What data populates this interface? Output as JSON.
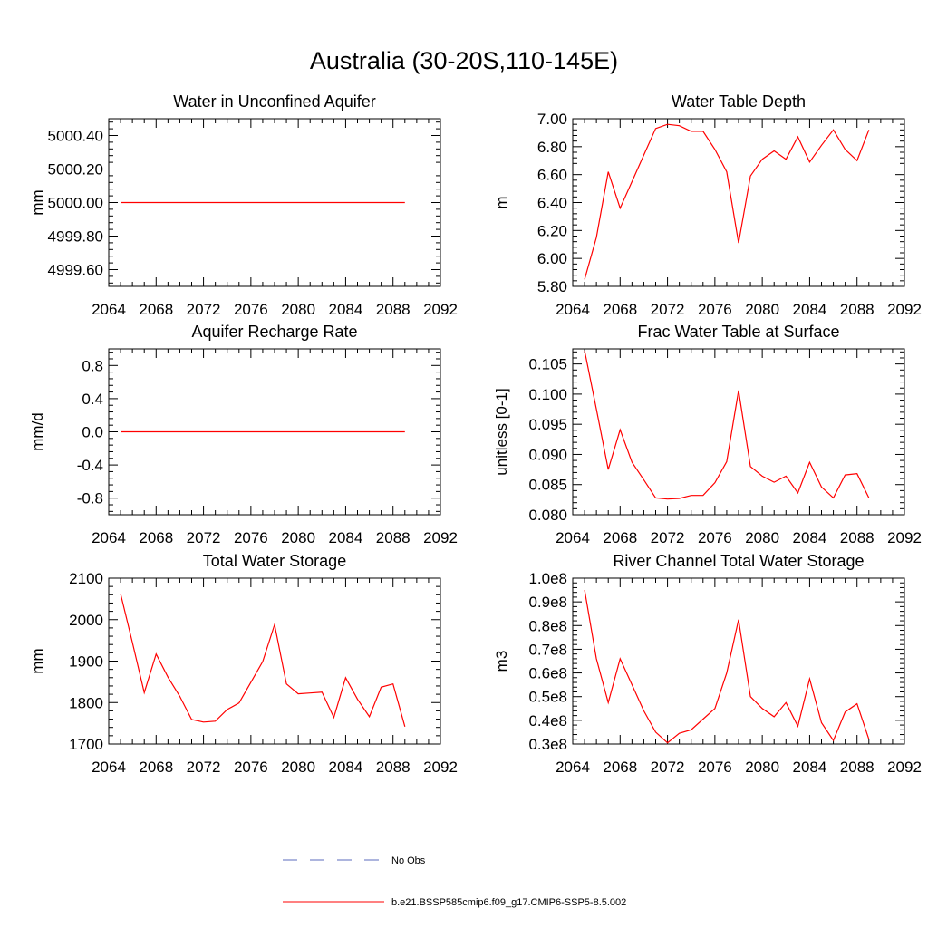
{
  "figure": {
    "title": "Australia (30-20S,110-145E)"
  },
  "legend": [
    {
      "label": "No Obs",
      "color": "#5b6bbd",
      "style": "dashed"
    },
    {
      "label": "b.e21.BSSP585cmip6.f09_g17.CMIP6-SSP5-8.5.002",
      "color": "#ff0000",
      "style": "solid"
    }
  ],
  "chart_data": [
    {
      "type": "line",
      "title": "Water in Unconfined Aquifer",
      "ylabel": "mm",
      "xlim": [
        2064,
        2092
      ],
      "ylim": [
        4999.5,
        5000.5
      ],
      "xticks": [
        "2064",
        "2068",
        "2072",
        "2076",
        "2080",
        "2084",
        "2088",
        "2092"
      ],
      "yticks": [
        "4999.60",
        "4999.80",
        "5000.00",
        "5000.20",
        "5000.40"
      ],
      "series": [
        {
          "color": "#ff0000",
          "x": [
            2065,
            2066,
            2067,
            2068,
            2069,
            2070,
            2071,
            2072,
            2073,
            2074,
            2075,
            2076,
            2077,
            2078,
            2079,
            2080,
            2081,
            2082,
            2083,
            2084,
            2085,
            2086,
            2087,
            2088,
            2089
          ],
          "values": [
            5000,
            5000,
            5000,
            5000,
            5000,
            5000,
            5000,
            5000,
            5000,
            5000,
            5000,
            5000,
            5000,
            5000,
            5000,
            5000,
            5000,
            5000,
            5000,
            5000,
            5000,
            5000,
            5000,
            5000,
            5000
          ]
        }
      ]
    },
    {
      "type": "line",
      "title": "Water Table Depth",
      "ylabel": "m",
      "xlim": [
        2064,
        2092
      ],
      "ylim": [
        5.8,
        7.0
      ],
      "xticks": [
        "2064",
        "2068",
        "2072",
        "2076",
        "2080",
        "2084",
        "2088",
        "2092"
      ],
      "yticks": [
        "5.80",
        "6.00",
        "6.20",
        "6.40",
        "6.60",
        "6.80",
        "7.00"
      ],
      "series": [
        {
          "color": "#ff0000",
          "x": [
            2065,
            2066,
            2067,
            2068,
            2069,
            2070,
            2071,
            2072,
            2073,
            2074,
            2075,
            2076,
            2077,
            2078,
            2079,
            2080,
            2081,
            2082,
            2083,
            2084,
            2085,
            2086,
            2087,
            2088,
            2089
          ],
          "values": [
            5.85,
            6.15,
            6.62,
            6.36,
            6.55,
            6.74,
            6.93,
            6.96,
            6.95,
            6.91,
            6.91,
            6.78,
            6.62,
            6.11,
            6.59,
            6.71,
            6.77,
            6.71,
            6.87,
            6.69,
            6.81,
            6.92,
            6.78,
            6.7,
            6.92
          ]
        }
      ]
    },
    {
      "type": "line",
      "title": "Aquifer Recharge Rate",
      "ylabel": "mm/d",
      "xlim": [
        2064,
        2092
      ],
      "ylim": [
        -1.0,
        1.0
      ],
      "xticks": [
        "2064",
        "2068",
        "2072",
        "2076",
        "2080",
        "2084",
        "2088",
        "2092"
      ],
      "yticks": [
        "-0.8",
        "-0.4",
        "0.0",
        "0.4",
        "0.8"
      ],
      "series": [
        {
          "color": "#ff0000",
          "x": [
            2065,
            2066,
            2067,
            2068,
            2069,
            2070,
            2071,
            2072,
            2073,
            2074,
            2075,
            2076,
            2077,
            2078,
            2079,
            2080,
            2081,
            2082,
            2083,
            2084,
            2085,
            2086,
            2087,
            2088,
            2089
          ],
          "values": [
            0,
            0,
            0,
            0,
            0,
            0,
            0,
            0,
            0,
            0,
            0,
            0,
            0,
            0,
            0,
            0,
            0,
            0,
            0,
            0,
            0,
            0,
            0,
            0,
            0
          ]
        }
      ]
    },
    {
      "type": "line",
      "title": "Frac Water Table at Surface",
      "ylabel": "unitless [0-1]",
      "xlim": [
        2064,
        2092
      ],
      "ylim": [
        0.08,
        0.1075
      ],
      "xticks": [
        "2064",
        "2068",
        "2072",
        "2076",
        "2080",
        "2084",
        "2088",
        "2092"
      ],
      "yticks": [
        "0.080",
        "0.085",
        "0.090",
        "0.095",
        "0.100",
        "0.105"
      ],
      "series": [
        {
          "color": "#ff0000",
          "x": [
            2065,
            2066,
            2067,
            2068,
            2069,
            2070,
            2071,
            2072,
            2073,
            2074,
            2075,
            2076,
            2077,
            2078,
            2079,
            2080,
            2081,
            2082,
            2083,
            2084,
            2085,
            2086,
            2087,
            2088,
            2089
          ],
          "values": [
            0.1072,
            0.0975,
            0.0875,
            0.0941,
            0.0887,
            0.0858,
            0.0828,
            0.0826,
            0.0827,
            0.0832,
            0.0832,
            0.0853,
            0.0888,
            0.1006,
            0.088,
            0.0864,
            0.0854,
            0.0864,
            0.0836,
            0.0887,
            0.0846,
            0.0828,
            0.0866,
            0.0868,
            0.0828
          ]
        }
      ]
    },
    {
      "type": "line",
      "title": "Total Water Storage",
      "ylabel": "mm",
      "xlim": [
        2064,
        2092
      ],
      "ylim": [
        1700,
        2100
      ],
      "xticks": [
        "2064",
        "2068",
        "2072",
        "2076",
        "2080",
        "2084",
        "2088",
        "2092"
      ],
      "yticks": [
        "1700",
        "1800",
        "1900",
        "2000",
        "2100"
      ],
      "series": [
        {
          "color": "#ff0000",
          "x": [
            2065,
            2066,
            2067,
            2068,
            2069,
            2070,
            2071,
            2072,
            2073,
            2074,
            2075,
            2076,
            2077,
            2078,
            2079,
            2080,
            2081,
            2082,
            2083,
            2084,
            2085,
            2086,
            2087,
            2088,
            2089
          ],
          "values": [
            2062,
            1945,
            1824,
            1917,
            1861,
            1815,
            1759,
            1753,
            1755,
            1783,
            1799,
            1849,
            1899,
            1988,
            1845,
            1821,
            1823,
            1825,
            1764,
            1860,
            1808,
            1766,
            1837,
            1845,
            1742
          ]
        }
      ]
    },
    {
      "type": "line",
      "title": "River Channel Total Water Storage",
      "ylabel": "m3",
      "xlim": [
        2064,
        2092
      ],
      "ylim": [
        30000000,
        100000000
      ],
      "xticks": [
        "2064",
        "2068",
        "2072",
        "2076",
        "2080",
        "2084",
        "2088",
        "2092"
      ],
      "yticks": [
        "0.3e8",
        "0.4e8",
        "0.5e8",
        "0.6e8",
        "0.7e8",
        "0.8e8",
        "0.9e8",
        "1.0e8"
      ],
      "series": [
        {
          "color": "#ff0000",
          "x": [
            2065,
            2066,
            2067,
            2068,
            2069,
            2070,
            2071,
            2072,
            2073,
            2074,
            2075,
            2076,
            2077,
            2078,
            2079,
            2080,
            2081,
            2082,
            2083,
            2084,
            2085,
            2086,
            2087,
            2088,
            2089
          ],
          "values": [
            95000000,
            66000000,
            47500000,
            66000000,
            55000000,
            44000000,
            35000000,
            30500000,
            34500000,
            36000000,
            40500000,
            45000000,
            60000000,
            82500000,
            50000000,
            45000000,
            41500000,
            47500000,
            37500000,
            57500000,
            39000000,
            31500000,
            43500000,
            47000000,
            32000000
          ]
        }
      ]
    }
  ]
}
